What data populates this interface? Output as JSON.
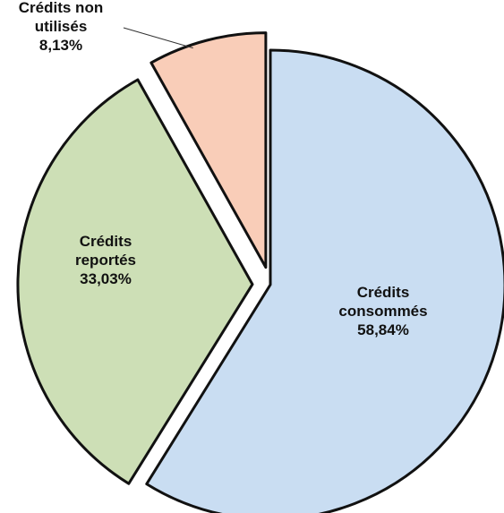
{
  "chart_data": {
    "type": "pie",
    "title": "",
    "slices": [
      {
        "label": [
          "Crédits",
          "consommés"
        ],
        "value": 58.84,
        "display": "58,84%",
        "color": "#c9ddf2",
        "exploded": false
      },
      {
        "label": [
          "Crédits",
          "reportés"
        ],
        "value": 33.03,
        "display": "33,03%",
        "color": "#cddfb6",
        "exploded": true
      },
      {
        "label": [
          "Crédits non",
          "utilisés"
        ],
        "value": 8.13,
        "display": "8,13%",
        "color": "#f9cdb8",
        "exploded": true
      }
    ]
  }
}
